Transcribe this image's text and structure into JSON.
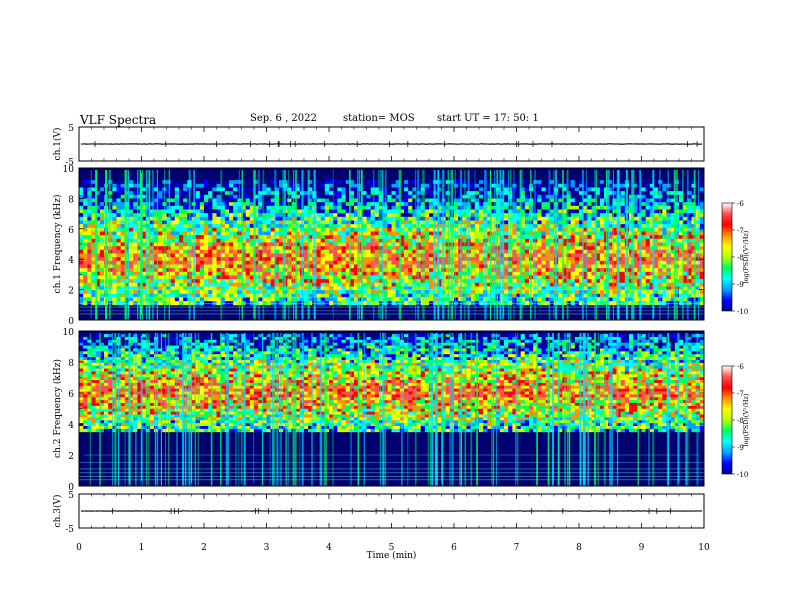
{
  "header": {
    "title": "VLF Spectra",
    "date": "Sep. 6 , 2022",
    "station": "station= MOS",
    "start": "start UT = 17: 50: 1"
  },
  "colors": {
    "spectrogram_palette": [
      "#00008a",
      "#0000ff",
      "#00a0ff",
      "#00ffff",
      "#00ff60",
      "#b4ff00",
      "#ffff00",
      "#ff9000",
      "#ff0000",
      "#ff5050",
      "#ffffff"
    ]
  },
  "chart_data": [
    {
      "type": "line",
      "panel": "ch1-waveform",
      "ylabel": "ch.1(V)",
      "ylim": [
        -5,
        5
      ],
      "yticks": [
        "5",
        "-5"
      ],
      "xlim": [
        0,
        10
      ],
      "baseline_value": 0,
      "series": [
        {
          "values": [
            0
          ]
        }
      ]
    },
    {
      "type": "heatmap",
      "panel": "ch1-spectrogram",
      "ylabel": "ch.1 Frequency (kHz)",
      "ylim": [
        0,
        10
      ],
      "yticks": [
        "0",
        "2",
        "4",
        "6",
        "8",
        "10"
      ],
      "xlim": [
        0,
        10
      ],
      "colorbar": {
        "label": "log(PSD)(V²/Hz)",
        "ticks": [
          "-6",
          "-7",
          "-8",
          "-9",
          "-10"
        ],
        "range": [
          -10,
          -6
        ]
      },
      "band": [
        1.0,
        9.2
      ]
    },
    {
      "type": "heatmap",
      "panel": "ch2-spectrogram",
      "ylabel": "ch.2 Frequency (kHz)",
      "ylim": [
        0,
        10
      ],
      "yticks": [
        "0",
        "2",
        "4",
        "6",
        "8",
        "10"
      ],
      "xlim": [
        0,
        10
      ],
      "colorbar": {
        "label": "log(PSD)(V²/Hz)",
        "ticks": [
          "-6",
          "-7",
          "-8",
          "-9",
          "-10"
        ],
        "range": [
          -10,
          -6
        ]
      },
      "band": [
        3.5,
        9.8
      ]
    },
    {
      "type": "line",
      "panel": "ch3-waveform",
      "ylabel": "ch.3(V)",
      "ylim": [
        -5,
        5
      ],
      "yticks": [
        "5",
        "-5"
      ],
      "xlim": [
        0,
        10
      ],
      "baseline_value": 0,
      "series": [
        {
          "values": [
            0
          ]
        }
      ]
    }
  ],
  "xaxis": {
    "label": "Time (min)",
    "ticks": [
      "0",
      "1",
      "2",
      "3",
      "4",
      "5",
      "6",
      "7",
      "8",
      "9",
      "10"
    ]
  }
}
